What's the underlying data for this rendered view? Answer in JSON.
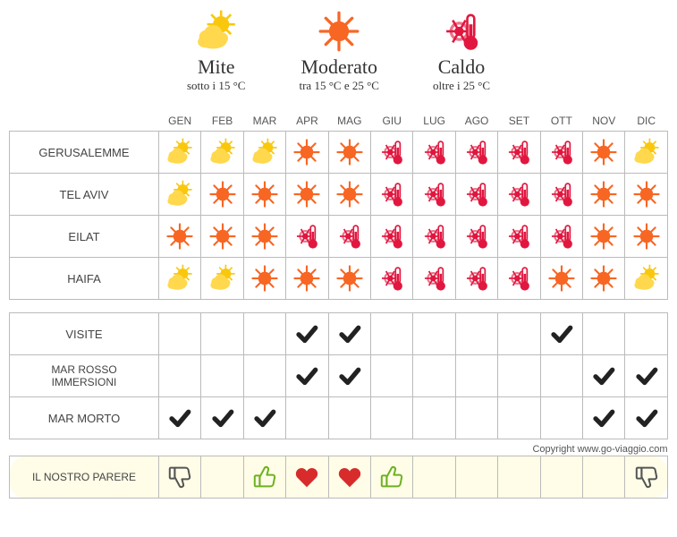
{
  "colors": {
    "mild": "#f9c80e",
    "moderate": "#f86624",
    "hot": "#e1173f",
    "check": "#222222",
    "thumb_up": "#6eb122",
    "thumb_down": "#555555",
    "heart": "#d82b2b",
    "border": "#bbbbbb",
    "opinion_bg": "#fffde7"
  },
  "legend": [
    {
      "key": "mild",
      "title": "Mite",
      "sub": "sotto i 15 °C"
    },
    {
      "key": "moderate",
      "title": "Moderato",
      "sub": "tra 15 °C e 25 °C"
    },
    {
      "key": "hot",
      "title": "Caldo",
      "sub": "oltre i 25 °C"
    }
  ],
  "months": [
    "GEN",
    "FEB",
    "MAR",
    "APR",
    "MAG",
    "GIU",
    "LUG",
    "AGO",
    "SET",
    "OTT",
    "NOV",
    "DIC"
  ],
  "climate_rows": [
    {
      "label": "GERUSALEMME",
      "values": [
        "mild",
        "mild",
        "mild",
        "moderate",
        "moderate",
        "hot",
        "hot",
        "hot",
        "hot",
        "hot",
        "moderate",
        "mild"
      ]
    },
    {
      "label": "TEL AVIV",
      "values": [
        "mild",
        "moderate",
        "moderate",
        "moderate",
        "moderate",
        "hot",
        "hot",
        "hot",
        "hot",
        "hot",
        "moderate",
        "moderate"
      ]
    },
    {
      "label": "EILAT",
      "values": [
        "moderate",
        "moderate",
        "moderate",
        "hot",
        "hot",
        "hot",
        "hot",
        "hot",
        "hot",
        "hot",
        "moderate",
        "moderate"
      ]
    },
    {
      "label": "HAIFA",
      "values": [
        "mild",
        "mild",
        "moderate",
        "moderate",
        "moderate",
        "hot",
        "hot",
        "hot",
        "hot",
        "moderate",
        "moderate",
        "mild"
      ]
    }
  ],
  "activity_rows": [
    {
      "label": "VISITE",
      "values": [
        "",
        "",
        "",
        "check",
        "check",
        "",
        "",
        "",
        "",
        "check",
        "",
        ""
      ]
    },
    {
      "label": "MAR ROSSO\nIMMERSIONI",
      "values": [
        "",
        "",
        "",
        "check",
        "check",
        "",
        "",
        "",
        "",
        "",
        "check",
        "check"
      ]
    },
    {
      "label": "MAR MORTO",
      "values": [
        "check",
        "check",
        "check",
        "",
        "",
        "",
        "",
        "",
        "",
        "",
        "check",
        "check"
      ]
    }
  ],
  "opinion_row": {
    "label": "IL NOSTRO PARERE",
    "values": [
      "thumb_down",
      "",
      "thumb_up",
      "heart",
      "heart",
      "thumb_up",
      "",
      "",
      "",
      "",
      "",
      "thumb_down"
    ]
  },
  "copyright": "Copyright www.go-viaggio.com"
}
